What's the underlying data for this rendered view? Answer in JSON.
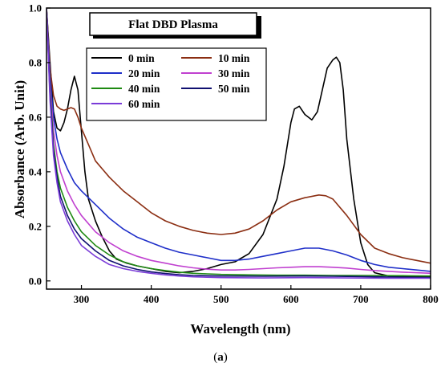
{
  "chart_data": {
    "type": "line",
    "title": "Flat DBD Plasma",
    "xlabel": "Wavelength (nm)",
    "ylabel": "Absorbance (Arb. Unit)",
    "caption_letter": "a",
    "xlim": [
      250,
      800
    ],
    "ylim": [
      -0.03,
      1.0
    ],
    "xticks": [
      300,
      400,
      500,
      600,
      700,
      800
    ],
    "yticks": [
      0.0,
      0.2,
      0.4,
      0.6,
      0.8,
      1.0
    ],
    "xtick_labels": [
      "300",
      "400",
      "500",
      "600",
      "700",
      "800"
    ],
    "ytick_labels": [
      "0.0",
      "0.2",
      "0.4",
      "0.6",
      "0.8",
      "1.0"
    ],
    "grid": false,
    "legend_position": "top-left",
    "series": [
      {
        "name": "0 min",
        "color": "#000000",
        "points": [
          [
            250,
            1.0
          ],
          [
            255,
            0.8
          ],
          [
            260,
            0.62
          ],
          [
            265,
            0.56
          ],
          [
            270,
            0.55
          ],
          [
            275,
            0.58
          ],
          [
            280,
            0.63
          ],
          [
            285,
            0.7
          ],
          [
            290,
            0.75
          ],
          [
            295,
            0.7
          ],
          [
            300,
            0.55
          ],
          [
            305,
            0.4
          ],
          [
            310,
            0.3
          ],
          [
            320,
            0.22
          ],
          [
            330,
            0.16
          ],
          [
            340,
            0.11
          ],
          [
            350,
            0.08
          ],
          [
            365,
            0.065
          ],
          [
            380,
            0.055
          ],
          [
            400,
            0.045
          ],
          [
            420,
            0.035
          ],
          [
            440,
            0.03
          ],
          [
            460,
            0.035
          ],
          [
            480,
            0.045
          ],
          [
            500,
            0.06
          ],
          [
            520,
            0.07
          ],
          [
            540,
            0.1
          ],
          [
            560,
            0.17
          ],
          [
            580,
            0.3
          ],
          [
            590,
            0.42
          ],
          [
            600,
            0.58
          ],
          [
            605,
            0.63
          ],
          [
            612,
            0.64
          ],
          [
            620,
            0.61
          ],
          [
            630,
            0.59
          ],
          [
            638,
            0.62
          ],
          [
            645,
            0.7
          ],
          [
            652,
            0.78
          ],
          [
            660,
            0.81
          ],
          [
            665,
            0.82
          ],
          [
            670,
            0.8
          ],
          [
            675,
            0.7
          ],
          [
            680,
            0.52
          ],
          [
            690,
            0.3
          ],
          [
            700,
            0.14
          ],
          [
            710,
            0.06
          ],
          [
            720,
            0.03
          ],
          [
            740,
            0.018
          ],
          [
            760,
            0.015
          ],
          [
            800,
            0.015
          ]
        ]
      },
      {
        "name": "10 min",
        "color": "#8B2E12",
        "points": [
          [
            250,
            1.0
          ],
          [
            255,
            0.78
          ],
          [
            260,
            0.68
          ],
          [
            265,
            0.64
          ],
          [
            270,
            0.63
          ],
          [
            275,
            0.625
          ],
          [
            280,
            0.63
          ],
          [
            285,
            0.635
          ],
          [
            290,
            0.63
          ],
          [
            295,
            0.6
          ],
          [
            300,
            0.56
          ],
          [
            310,
            0.5
          ],
          [
            320,
            0.44
          ],
          [
            340,
            0.38
          ],
          [
            360,
            0.33
          ],
          [
            380,
            0.29
          ],
          [
            400,
            0.25
          ],
          [
            420,
            0.22
          ],
          [
            440,
            0.2
          ],
          [
            460,
            0.185
          ],
          [
            480,
            0.175
          ],
          [
            500,
            0.17
          ],
          [
            520,
            0.175
          ],
          [
            540,
            0.19
          ],
          [
            560,
            0.22
          ],
          [
            580,
            0.26
          ],
          [
            600,
            0.29
          ],
          [
            620,
            0.305
          ],
          [
            640,
            0.315
          ],
          [
            650,
            0.312
          ],
          [
            660,
            0.3
          ],
          [
            680,
            0.24
          ],
          [
            700,
            0.17
          ],
          [
            720,
            0.12
          ],
          [
            740,
            0.1
          ],
          [
            760,
            0.085
          ],
          [
            780,
            0.075
          ],
          [
            800,
            0.065
          ]
        ]
      },
      {
        "name": "20 min",
        "color": "#1F2FC9",
        "points": [
          [
            250,
            1.0
          ],
          [
            255,
            0.75
          ],
          [
            260,
            0.6
          ],
          [
            265,
            0.52
          ],
          [
            270,
            0.47
          ],
          [
            280,
            0.41
          ],
          [
            290,
            0.36
          ],
          [
            300,
            0.33
          ],
          [
            320,
            0.28
          ],
          [
            340,
            0.23
          ],
          [
            360,
            0.19
          ],
          [
            380,
            0.16
          ],
          [
            400,
            0.14
          ],
          [
            420,
            0.12
          ],
          [
            440,
            0.105
          ],
          [
            460,
            0.095
          ],
          [
            480,
            0.085
          ],
          [
            500,
            0.075
          ],
          [
            520,
            0.075
          ],
          [
            540,
            0.08
          ],
          [
            560,
            0.09
          ],
          [
            580,
            0.1
          ],
          [
            600,
            0.11
          ],
          [
            620,
            0.12
          ],
          [
            640,
            0.12
          ],
          [
            660,
            0.11
          ],
          [
            680,
            0.095
          ],
          [
            700,
            0.075
          ],
          [
            720,
            0.06
          ],
          [
            740,
            0.05
          ],
          [
            760,
            0.045
          ],
          [
            780,
            0.04
          ],
          [
            800,
            0.035
          ]
        ]
      },
      {
        "name": "30 min",
        "color": "#C040D0",
        "points": [
          [
            250,
            1.0
          ],
          [
            255,
            0.72
          ],
          [
            260,
            0.55
          ],
          [
            265,
            0.46
          ],
          [
            270,
            0.4
          ],
          [
            280,
            0.33
          ],
          [
            290,
            0.28
          ],
          [
            300,
            0.24
          ],
          [
            320,
            0.18
          ],
          [
            340,
            0.14
          ],
          [
            360,
            0.11
          ],
          [
            380,
            0.09
          ],
          [
            400,
            0.075
          ],
          [
            420,
            0.065
          ],
          [
            440,
            0.055
          ],
          [
            460,
            0.048
          ],
          [
            480,
            0.043
          ],
          [
            500,
            0.04
          ],
          [
            520,
            0.04
          ],
          [
            540,
            0.042
          ],
          [
            560,
            0.045
          ],
          [
            580,
            0.048
          ],
          [
            600,
            0.05
          ],
          [
            620,
            0.052
          ],
          [
            640,
            0.052
          ],
          [
            660,
            0.05
          ],
          [
            680,
            0.047
          ],
          [
            700,
            0.042
          ],
          [
            720,
            0.038
          ],
          [
            740,
            0.035
          ],
          [
            760,
            0.032
          ],
          [
            780,
            0.03
          ],
          [
            800,
            0.028
          ]
        ]
      },
      {
        "name": "40 min",
        "color": "#1E8A12",
        "points": [
          [
            250,
            1.0
          ],
          [
            255,
            0.7
          ],
          [
            260,
            0.5
          ],
          [
            265,
            0.4
          ],
          [
            270,
            0.34
          ],
          [
            280,
            0.27
          ],
          [
            290,
            0.22
          ],
          [
            300,
            0.18
          ],
          [
            320,
            0.13
          ],
          [
            340,
            0.095
          ],
          [
            360,
            0.07
          ],
          [
            380,
            0.055
          ],
          [
            400,
            0.045
          ],
          [
            420,
            0.038
          ],
          [
            440,
            0.032
          ],
          [
            460,
            0.028
          ],
          [
            480,
            0.026
          ],
          [
            500,
            0.024
          ],
          [
            540,
            0.022
          ],
          [
            580,
            0.021
          ],
          [
            620,
            0.021
          ],
          [
            660,
            0.02
          ],
          [
            700,
            0.02
          ],
          [
            760,
            0.019
          ],
          [
            800,
            0.018
          ]
        ]
      },
      {
        "name": "50 min",
        "color": "#101070",
        "points": [
          [
            250,
            1.0
          ],
          [
            255,
            0.68
          ],
          [
            260,
            0.48
          ],
          [
            265,
            0.38
          ],
          [
            270,
            0.31
          ],
          [
            280,
            0.24
          ],
          [
            290,
            0.19
          ],
          [
            300,
            0.155
          ],
          [
            320,
            0.11
          ],
          [
            340,
            0.075
          ],
          [
            360,
            0.055
          ],
          [
            380,
            0.042
          ],
          [
            400,
            0.033
          ],
          [
            420,
            0.027
          ],
          [
            440,
            0.023
          ],
          [
            460,
            0.02
          ],
          [
            500,
            0.018
          ],
          [
            560,
            0.017
          ],
          [
            620,
            0.018
          ],
          [
            660,
            0.017
          ],
          [
            720,
            0.015
          ],
          [
            800,
            0.012
          ]
        ]
      },
      {
        "name": "60 min",
        "color": "#7A3BD8",
        "points": [
          [
            250,
            1.0
          ],
          [
            255,
            0.66
          ],
          [
            260,
            0.46
          ],
          [
            265,
            0.36
          ],
          [
            270,
            0.29
          ],
          [
            280,
            0.22
          ],
          [
            290,
            0.17
          ],
          [
            300,
            0.13
          ],
          [
            320,
            0.09
          ],
          [
            340,
            0.06
          ],
          [
            360,
            0.045
          ],
          [
            380,
            0.035
          ],
          [
            400,
            0.028
          ],
          [
            420,
            0.022
          ],
          [
            440,
            0.018
          ],
          [
            460,
            0.015
          ],
          [
            500,
            0.012
          ],
          [
            560,
            0.011
          ],
          [
            620,
            0.012
          ],
          [
            680,
            0.011
          ],
          [
            740,
            0.01
          ],
          [
            800,
            0.01
          ]
        ]
      }
    ]
  }
}
